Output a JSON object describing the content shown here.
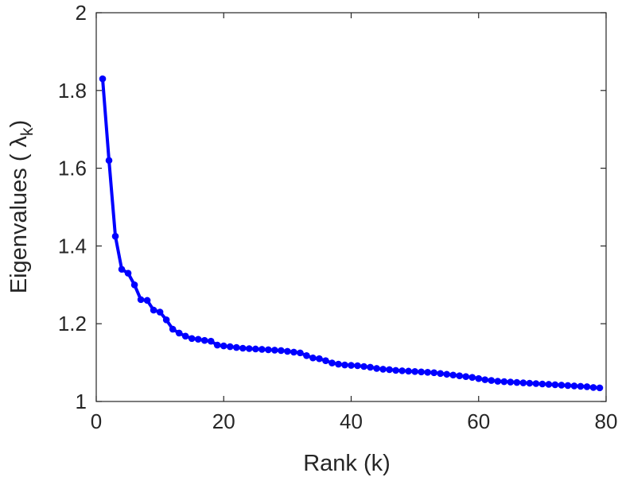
{
  "chart_data": {
    "type": "line",
    "title": "",
    "xlabel": "Rank (k)",
    "ylabel": {
      "prefix": "Eigenvalues (  ",
      "symbol": "λ",
      "subscript": "k",
      "suffix": ")"
    },
    "xlim": [
      0,
      80
    ],
    "ylim": [
      1,
      2
    ],
    "xticks": [
      0,
      20,
      40,
      60,
      80
    ],
    "yticks": [
      1,
      1.2,
      1.4,
      1.6,
      1.8,
      2
    ],
    "xtick_labels": [
      "0",
      "20",
      "40",
      "60",
      "80"
    ],
    "ytick_labels": [
      "1",
      "1.2",
      "1.4",
      "1.6",
      "1.8",
      "2"
    ],
    "box": true,
    "grid": false,
    "line_color": "#0000ff",
    "marker": "circle",
    "series": [
      {
        "x": [
          1,
          2,
          3,
          4,
          5,
          6,
          7,
          8,
          9,
          10,
          11,
          12,
          13,
          14,
          15,
          16,
          17,
          18,
          19,
          20,
          21,
          22,
          23,
          24,
          25,
          26,
          27,
          28,
          29,
          30,
          31,
          32,
          33,
          34,
          35,
          36,
          37,
          38,
          39,
          40,
          41,
          42,
          43,
          44,
          45,
          46,
          47,
          48,
          49,
          50,
          51,
          52,
          53,
          54,
          55,
          56,
          57,
          58,
          59,
          60,
          61,
          62,
          63,
          64,
          65,
          66,
          67,
          68,
          69,
          70,
          71,
          72,
          73,
          74,
          75,
          76,
          77,
          78,
          79
        ],
        "values": [
          1.83,
          1.62,
          1.425,
          1.34,
          1.33,
          1.3,
          1.262,
          1.26,
          1.235,
          1.23,
          1.21,
          1.186,
          1.176,
          1.168,
          1.162,
          1.16,
          1.157,
          1.155,
          1.145,
          1.143,
          1.141,
          1.139,
          1.137,
          1.136,
          1.135,
          1.134,
          1.133,
          1.132,
          1.131,
          1.129,
          1.127,
          1.125,
          1.118,
          1.112,
          1.11,
          1.105,
          1.099,
          1.096,
          1.094,
          1.093,
          1.092,
          1.09,
          1.088,
          1.085,
          1.083,
          1.082,
          1.08,
          1.079,
          1.078,
          1.077,
          1.076,
          1.075,
          1.074,
          1.072,
          1.07,
          1.068,
          1.066,
          1.064,
          1.062,
          1.059,
          1.056,
          1.054,
          1.052,
          1.051,
          1.05,
          1.049,
          1.048,
          1.047,
          1.046,
          1.045,
          1.044,
          1.043,
          1.042,
          1.041,
          1.04,
          1.039,
          1.038,
          1.036,
          1.035
        ]
      }
    ]
  }
}
